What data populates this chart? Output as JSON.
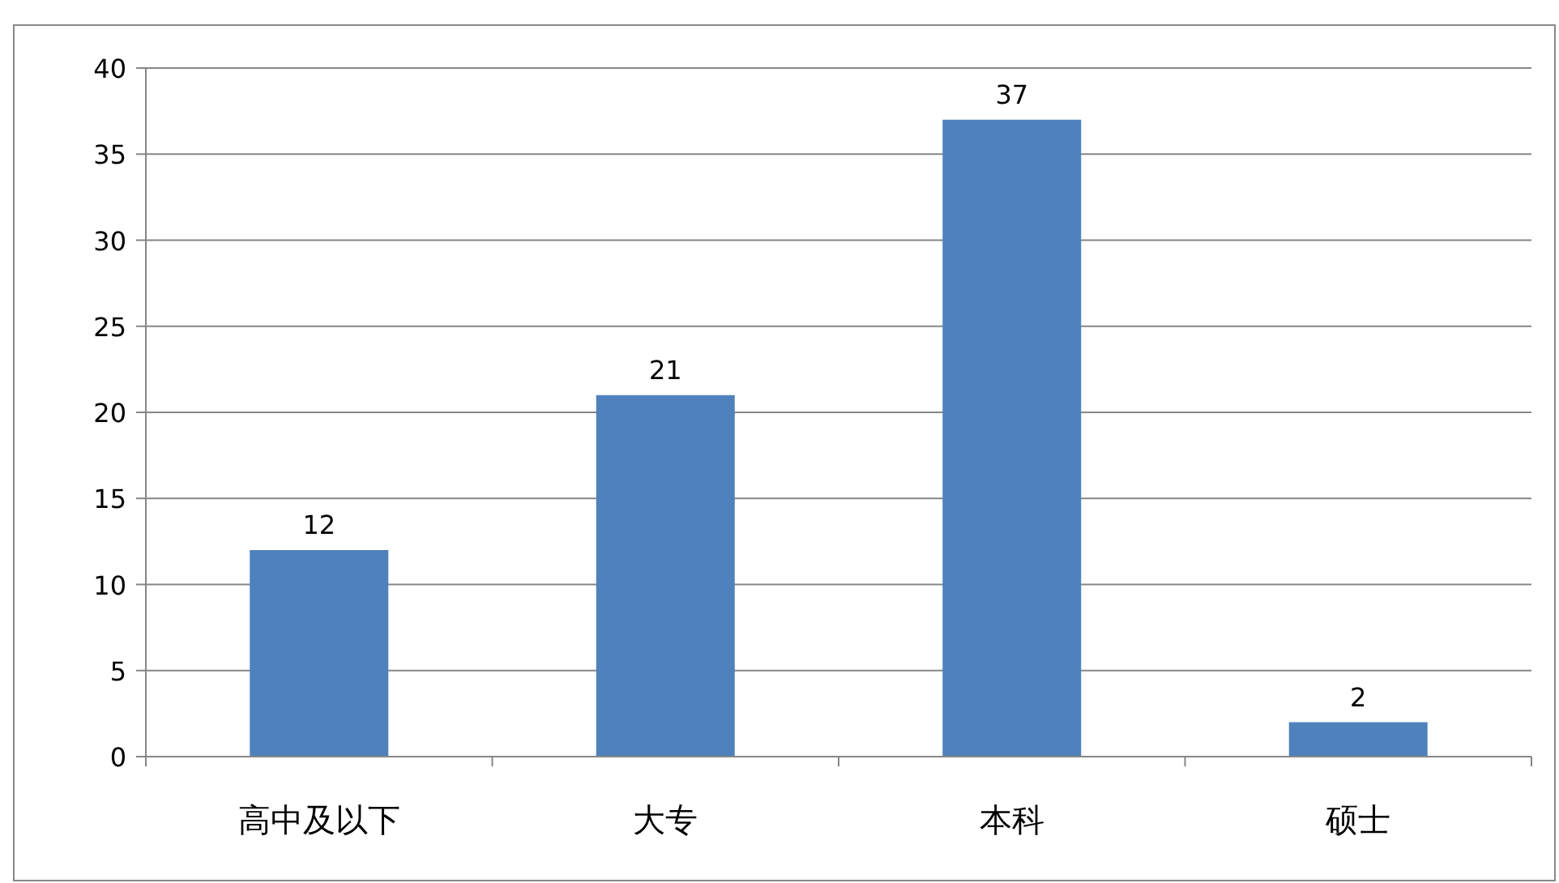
{
  "chart_data": {
    "type": "bar",
    "categories": [
      "高中及以下",
      "大专",
      "本科",
      "硕士"
    ],
    "values": [
      12,
      21,
      37,
      2
    ],
    "color": "#4f81bd",
    "ylim": [
      0,
      40
    ],
    "yticks": [
      0,
      5,
      10,
      15,
      20,
      25,
      30,
      35,
      40
    ],
    "grid": "y",
    "data_labels": true
  }
}
